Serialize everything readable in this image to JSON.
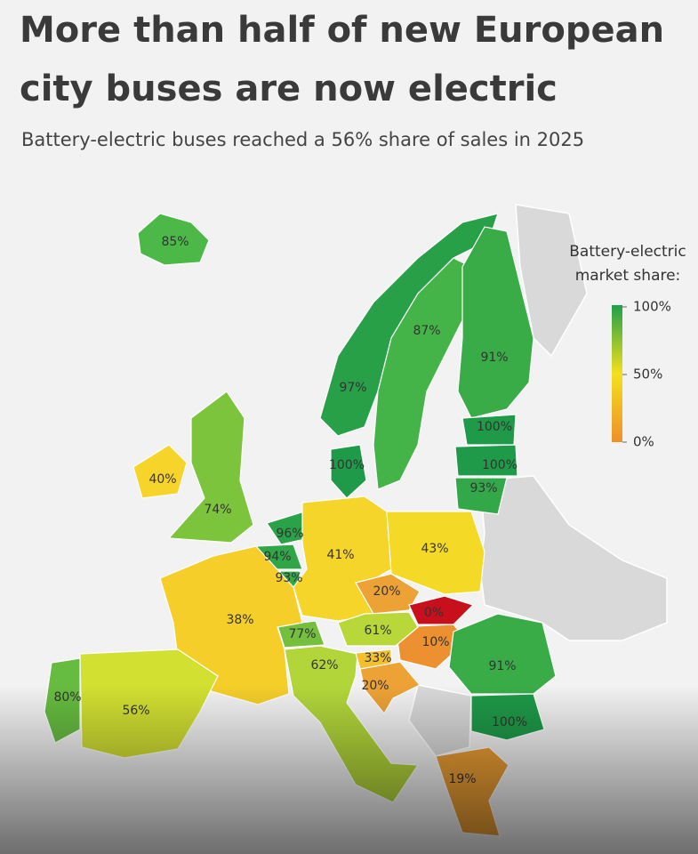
{
  "header": {
    "title_line1": "More than half of new European",
    "title_line2": "city buses are now electric",
    "subtitle": "Battery-electric buses reached a 56% share of sales in 2025"
  },
  "legend": {
    "title_line1": "Battery-electric",
    "title_line2": "market share:",
    "ticks": [
      {
        "value": 100,
        "label": "100%"
      },
      {
        "value": 50,
        "label": "50%"
      },
      {
        "value": 0,
        "label": "0%"
      }
    ],
    "colors": [
      "#1fa04a",
      "#f4e01c",
      "#ee8f2a"
    ]
  },
  "regions": [
    {
      "value": 85,
      "label": "85%",
      "color": "#4cb848"
    },
    {
      "value": 97,
      "label": "97%",
      "color": "#27a048"
    },
    {
      "value": 87,
      "label": "87%",
      "color": "#45b448"
    },
    {
      "value": 91,
      "label": "91%",
      "color": "#39ac48"
    },
    {
      "value": 100,
      "label": "100%",
      "color": "#1e9a48"
    },
    {
      "value": 100,
      "label": "100%",
      "color": "#1e9a48"
    },
    {
      "value": 93,
      "label": "93%",
      "color": "#33a848"
    },
    {
      "value": 100,
      "label": "100%",
      "color": "#1e9a48"
    },
    {
      "value": 40,
      "label": "40%",
      "color": "#f6d42a"
    },
    {
      "value": 74,
      "label": "74%",
      "color": "#7cc43c"
    },
    {
      "value": 96,
      "label": "96%",
      "color": "#2aa248"
    },
    {
      "value": 94,
      "label": "94%",
      "color": "#30a648"
    },
    {
      "value": 93,
      "label": "93%",
      "color": "#33a848"
    },
    {
      "value": 41,
      "label": "41%",
      "color": "#f5d52a"
    },
    {
      "value": 43,
      "label": "43%",
      "color": "#f4da26"
    },
    {
      "value": 20,
      "label": "20%",
      "color": "#eda236"
    },
    {
      "value": 0,
      "label": "0%",
      "color": "#c8101c"
    },
    {
      "value": 10,
      "label": "10%",
      "color": "#ec9030"
    },
    {
      "value": 61,
      "label": "61%",
      "color": "#b8d83a"
    },
    {
      "value": 77,
      "label": "77%",
      "color": "#74c03e"
    },
    {
      "value": 38,
      "label": "38%",
      "color": "#f5ce2a"
    },
    {
      "value": 62,
      "label": "62%",
      "color": "#b2d63a"
    },
    {
      "value": 33,
      "label": "33%",
      "color": "#f2c02e"
    },
    {
      "value": 20,
      "label": "20%",
      "color": "#eda236"
    },
    {
      "value": 91,
      "label": "91%",
      "color": "#39ac48"
    },
    {
      "value": 100,
      "label": "100%",
      "color": "#1e9a48"
    },
    {
      "value": 80,
      "label": "80%",
      "color": "#66bc40"
    },
    {
      "value": 56,
      "label": "56%",
      "color": "#d2e032"
    },
    {
      "value": 19,
      "label": "19%",
      "color": "#eb9e34"
    }
  ]
}
